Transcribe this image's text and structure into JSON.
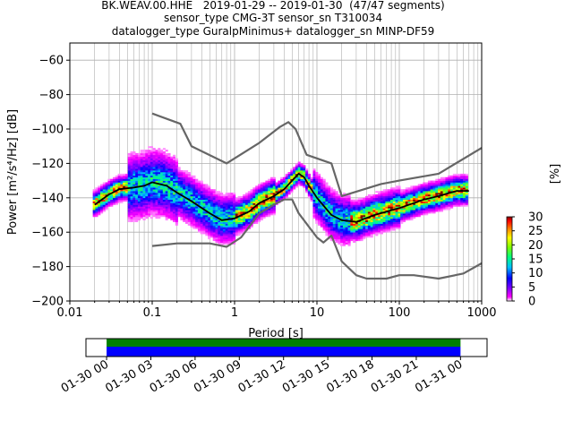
{
  "title_lines": [
    "BK.WEAV.00.HHE   2019-01-29 -- 2019-01-30  (47/47 segments)",
    "sensor_type CMG-3T sensor_sn T310034",
    "datalogger_type GuralpMinimus+ datalogger_sn MINP-DF59"
  ],
  "chart_data": [
    {
      "type": "heatmap",
      "title": "BK.WEAV.00.HHE   2019-01-29 -- 2019-01-30  (47/47 segments)",
      "xlabel": "Period [s]",
      "ylabel": "Power [m²/s⁴/Hz] [dB]",
      "x_scale": "log",
      "xlim": [
        0.01,
        1000
      ],
      "ylim": [
        -200,
        -50
      ],
      "x_ticks": [
        "0.01",
        "0.1",
        "1",
        "10",
        "100",
        "1000"
      ],
      "y_ticks": [
        "−60",
        "−80",
        "−100",
        "−120",
        "−140",
        "−160",
        "−180",
        "−200"
      ],
      "grid": true,
      "colorbar": {
        "label": "[%]",
        "range": [
          0,
          30
        ],
        "ticks": [
          "0",
          "5",
          "10",
          "15",
          "20",
          "25",
          "30"
        ],
        "colormap": [
          "#ffffff",
          "#ff00ff",
          "#7f00ff",
          "#0000ff",
          "#00bfff",
          "#00ff7f",
          "#7fff00",
          "#ffff00",
          "#ff7f00",
          "#ff0000",
          "#7f0000"
        ]
      },
      "series": [
        {
          "name": "",
          "color": "#666666",
          "x": [
            0.1,
            0.22,
            0.3,
            0.8,
            2,
            3.5,
            4.5,
            5.5,
            7.5,
            15,
            20,
            60,
            100,
            300,
            1000
          ],
          "y": [
            -91,
            -97,
            -110,
            -120,
            -108,
            -99,
            -96,
            -100,
            -115,
            -120,
            -139,
            -132,
            -130,
            -126,
            -111
          ]
        },
        {
          "name": "",
          "color": "#666666",
          "x": [
            0.1,
            0.2,
            0.5,
            0.8,
            1.2,
            2.0,
            3.0,
            4.0,
            5.0,
            6.0,
            10,
            12,
            15,
            20,
            30,
            40,
            70,
            100,
            150,
            300,
            600,
            1000
          ],
          "y": [
            -168,
            -166.5,
            -166.5,
            -168.5,
            -163,
            -149,
            -144,
            -141,
            -141,
            -149,
            -163,
            -166,
            -162,
            -177,
            -185,
            -187,
            -187,
            -185,
            -185,
            -187,
            -184,
            -178
          ]
        },
        {
          "name": "",
          "color": "#000000",
          "x": [
            0.02,
            0.03,
            0.04,
            0.06,
            0.08,
            0.1,
            0.15,
            0.2,
            0.3,
            0.5,
            0.7,
            1.0,
            1.5,
            2.0,
            3.0,
            4.0,
            5.0,
            6.0,
            7.0,
            8.0,
            10,
            15,
            20,
            30,
            50,
            100,
            200,
            300,
            500,
            700
          ],
          "y": [
            -144,
            -138,
            -135,
            -134,
            -133,
            -131,
            -133,
            -137,
            -142,
            -149,
            -153,
            -152,
            -148,
            -143,
            -139,
            -135,
            -130,
            -126,
            -128,
            -133,
            -140,
            -150,
            -153,
            -154,
            -150,
            -146,
            -141,
            -139,
            -136,
            -136
          ]
        }
      ]
    },
    {
      "type": "bar",
      "title": "",
      "x_ticks": [
        "01-30 00",
        "01-30 03",
        "01-30 06",
        "01-30 09",
        "01-30 12",
        "01-30 15",
        "01-30 18",
        "01-30 21",
        "01-31 00"
      ],
      "xlim": [
        "01-29 22:36",
        "01-31 01:48"
      ],
      "series": [
        {
          "name": "",
          "color": "#008000",
          "x": [
            "01-30 00:00",
            "01-31 00:00"
          ]
        },
        {
          "name": "",
          "color": "#0000ff",
          "x": [
            "01-30 00:00",
            "01-31 00:00"
          ]
        }
      ]
    }
  ]
}
